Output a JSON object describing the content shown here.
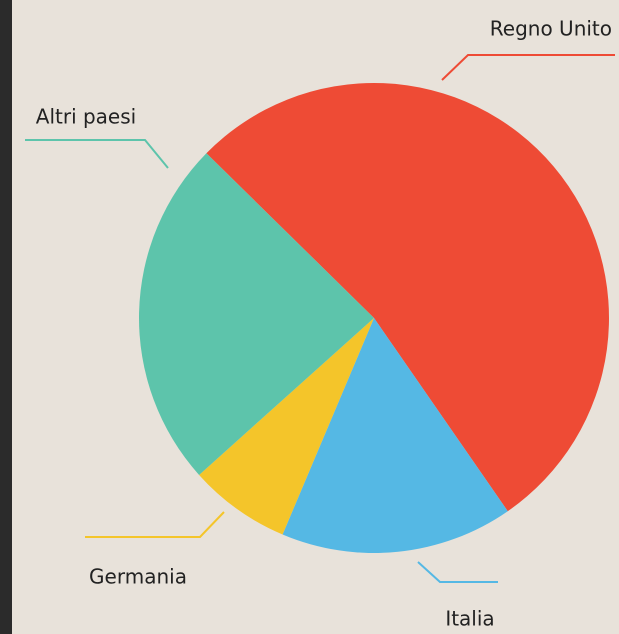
{
  "chart_data": {
    "type": "pie",
    "categories": [
      "Regno Unito",
      "Italia",
      "Germania",
      "Altri paesi"
    ],
    "values": [
      53,
      16,
      7,
      24
    ],
    "colors": [
      "#ee4b35",
      "#55b8e4",
      "#f4c52a",
      "#5dc4ab"
    ]
  }
}
